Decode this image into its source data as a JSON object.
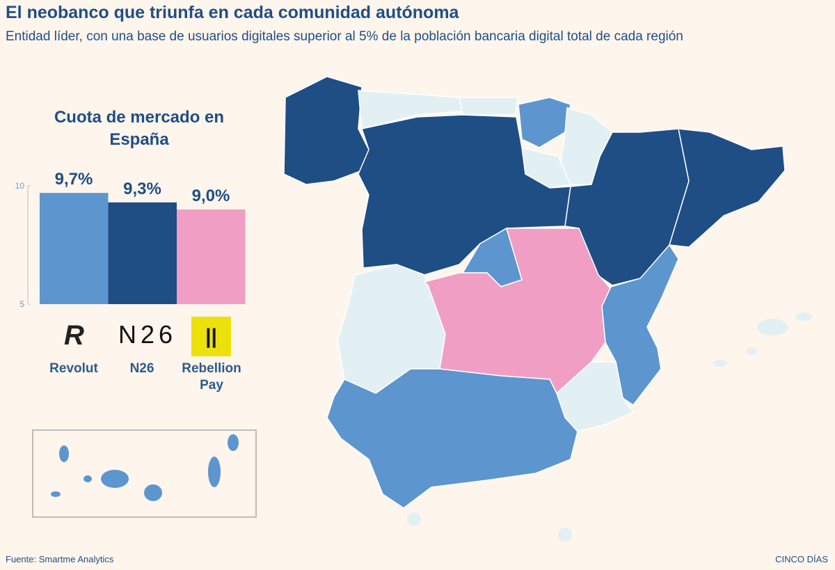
{
  "header": {
    "title": "El neobanco que triunfa en cada comunidad autónoma",
    "subtitle": "Entidad líder, con una base de usuarios digitales superior al 5% de la población bancaria digital total  de cada región"
  },
  "colors": {
    "revolut": "#5d96cf",
    "n26": "#1f4e85",
    "rebellion": "#f09ec4",
    "other": "#e2f0f3",
    "background": "#fef5ec"
  },
  "chart_data": {
    "type": "bar",
    "title": "Cuota de mercado en España",
    "categories": [
      "Revolut",
      "N26",
      "Rebellion Pay"
    ],
    "values": [
      9.7,
      9.3,
      9.0
    ],
    "value_labels": [
      "9,7%",
      "9,3%",
      "9,0%"
    ],
    "ylim": [
      5,
      10
    ],
    "yticks": [
      "10",
      "5"
    ],
    "grid": false
  },
  "map": {
    "regions": [
      {
        "name": "Galicia",
        "leader": "n26"
      },
      {
        "name": "Asturias",
        "leader": "other"
      },
      {
        "name": "Cantabria",
        "leader": "other"
      },
      {
        "name": "País Vasco",
        "leader": "revolut"
      },
      {
        "name": "Navarra",
        "leader": "other"
      },
      {
        "name": "La Rioja",
        "leader": "other"
      },
      {
        "name": "Castilla y León",
        "leader": "n26"
      },
      {
        "name": "Aragón",
        "leader": "n26"
      },
      {
        "name": "Cataluña",
        "leader": "n26"
      },
      {
        "name": "Madrid",
        "leader": "revolut"
      },
      {
        "name": "Extremadura",
        "leader": "other"
      },
      {
        "name": "Castilla-La Mancha",
        "leader": "rebellion"
      },
      {
        "name": "Comunidad Valenciana",
        "leader": "revolut"
      },
      {
        "name": "Murcia",
        "leader": "other"
      },
      {
        "name": "Andalucía",
        "leader": "revolut"
      },
      {
        "name": "Baleares",
        "leader": "other"
      },
      {
        "name": "Ceuta",
        "leader": "other"
      },
      {
        "name": "Melilla",
        "leader": "other"
      },
      {
        "name": "Canarias",
        "leader": "revolut"
      }
    ]
  },
  "logos": {
    "revolut": "R",
    "n26": "N26",
    "rebellion": "||"
  },
  "footer": {
    "source": "Fuente: Smartme Analytics",
    "credit": "CINCO DÍAS"
  }
}
